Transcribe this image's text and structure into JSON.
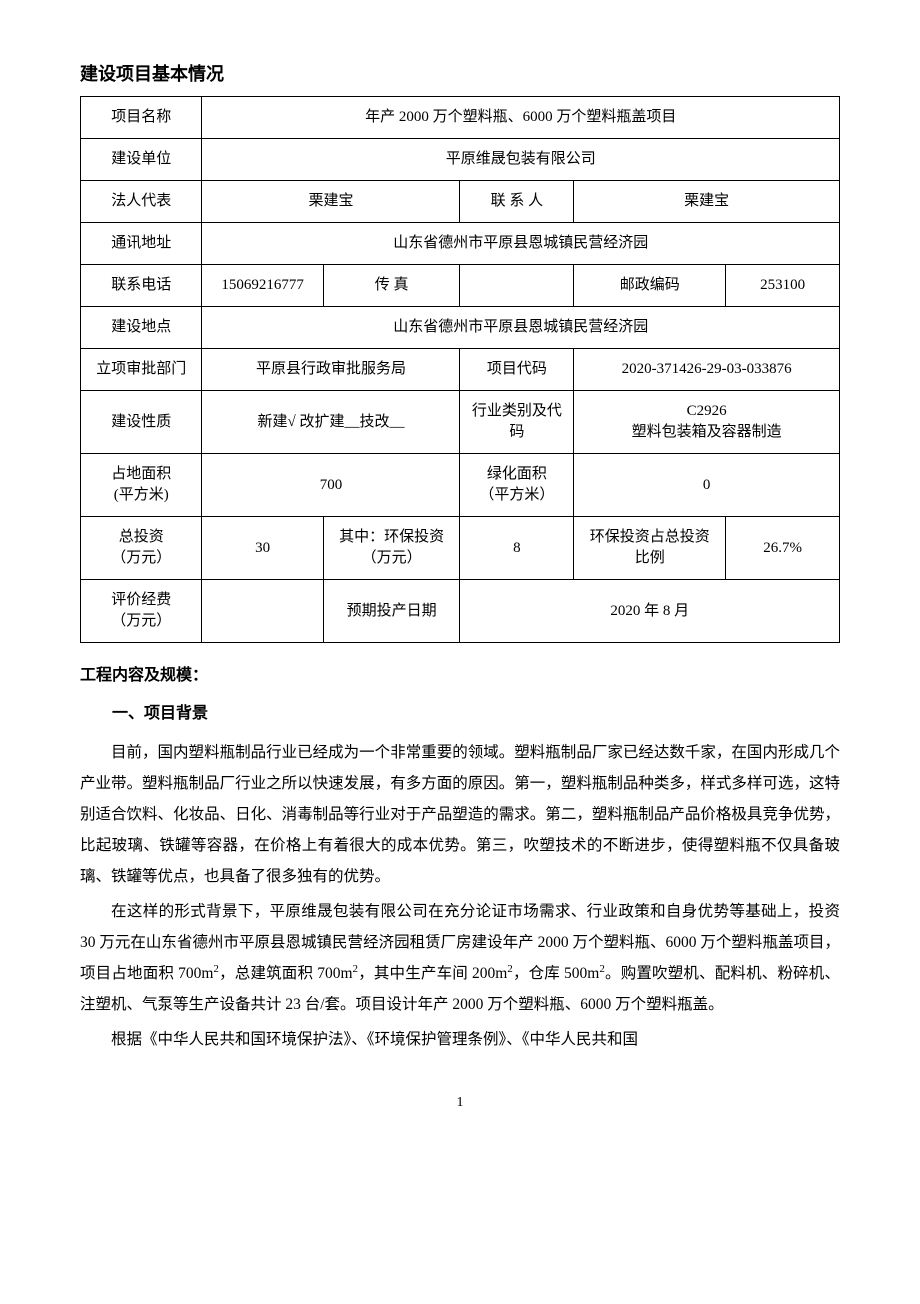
{
  "title": "建设项目基本情况",
  "table": {
    "r1": {
      "label": "项目名称",
      "value": "年产 2000 万个塑料瓶、6000 万个塑料瓶盖项目"
    },
    "r2": {
      "label": "建设单位",
      "value": "平原维晟包装有限公司"
    },
    "r3": {
      "label1": "法人代表",
      "value1": "栗建宝",
      "label2": "联 系 人",
      "value2": "栗建宝"
    },
    "r4": {
      "label": "通讯地址",
      "value": "山东省德州市平原县恩城镇民营经济园"
    },
    "r5": {
      "label1": "联系电话",
      "value1": "15069216777",
      "label2": "传  真",
      "value2": "",
      "label3": "邮政编码",
      "value3": "253100"
    },
    "r6": {
      "label": "建设地点",
      "value": "山东省德州市平原县恩城镇民营经济园"
    },
    "r7": {
      "label1": "立项审批部门",
      "value1": "平原县行政审批服务局",
      "label2": "项目代码",
      "value2": "2020-371426-29-03-033876"
    },
    "r8": {
      "label1": "建设性质",
      "value1": "新建√ 改扩建__技改__",
      "label2": "行业类别及代码",
      "value2": "C2926\n塑料包装箱及容器制造"
    },
    "r9": {
      "label1": "占地面积\n(平方米)",
      "value1": "700",
      "label2": "绿化面积\n（平方米）",
      "value2": "0"
    },
    "r10": {
      "label1": "总投资\n（万元）",
      "value1": "30",
      "label2": "其中：环保投资\n（万元）",
      "value2": "8",
      "label3": "环保投资占总投资比例",
      "value3": "26.7%"
    },
    "r11": {
      "label1": "评价经费\n（万元）",
      "value1": "",
      "label2": "预期投产日期",
      "value2": "2020 年 8 月"
    }
  },
  "section_heading": "工程内容及规模：",
  "sub_heading": "一、项目背景",
  "paragraphs": {
    "p1": "目前，国内塑料瓶制品行业已经成为一个非常重要的领域。塑料瓶制品厂家已经达数千家，在国内形成几个产业带。塑料瓶制品厂行业之所以快速发展，有多方面的原因。第一，塑料瓶制品种类多，样式多样可选，这特别适合饮料、化妆品、日化、消毒制品等行业对于产品塑造的需求。第二，塑料瓶制品产品价格极具竞争优势，比起玻璃、铁罐等容器，在价格上有着很大的成本优势。第三，吹塑技术的不断进步，使得塑料瓶不仅具备玻璃、铁罐等优点，也具备了很多独有的优势。",
    "p2a": "在这样的形式背景下，平原维晟包装有限公司在充分论证市场需求、行业政策和自身优势等基础上，投资 30 万元在山东省德州市平原县恩城镇民营经济园租赁厂房建设年产 2000 万个塑料瓶、6000 万个塑料瓶盖项目，项目占地面积 700m",
    "p2b": "，总建筑面积 700m",
    "p2c": "，其中生产车间 200m",
    "p2d": "，仓库 500m",
    "p2e": "。购置吹塑机、配料机、粉碎机、注塑机、气泵等生产设备共计 23 台/套。项目设计年产 2000 万个塑料瓶、6000 万个塑料瓶盖。",
    "p3": "根据《中华人民共和国环境保护法》、《环境保护管理条例》、《中华人民共和国"
  },
  "sup2": "2",
  "page_number": "1",
  "col_widths": {
    "c1": "16%",
    "c2": "16%",
    "c3": "18%",
    "c4": "15%",
    "c5": "20%",
    "c6": "15%"
  }
}
